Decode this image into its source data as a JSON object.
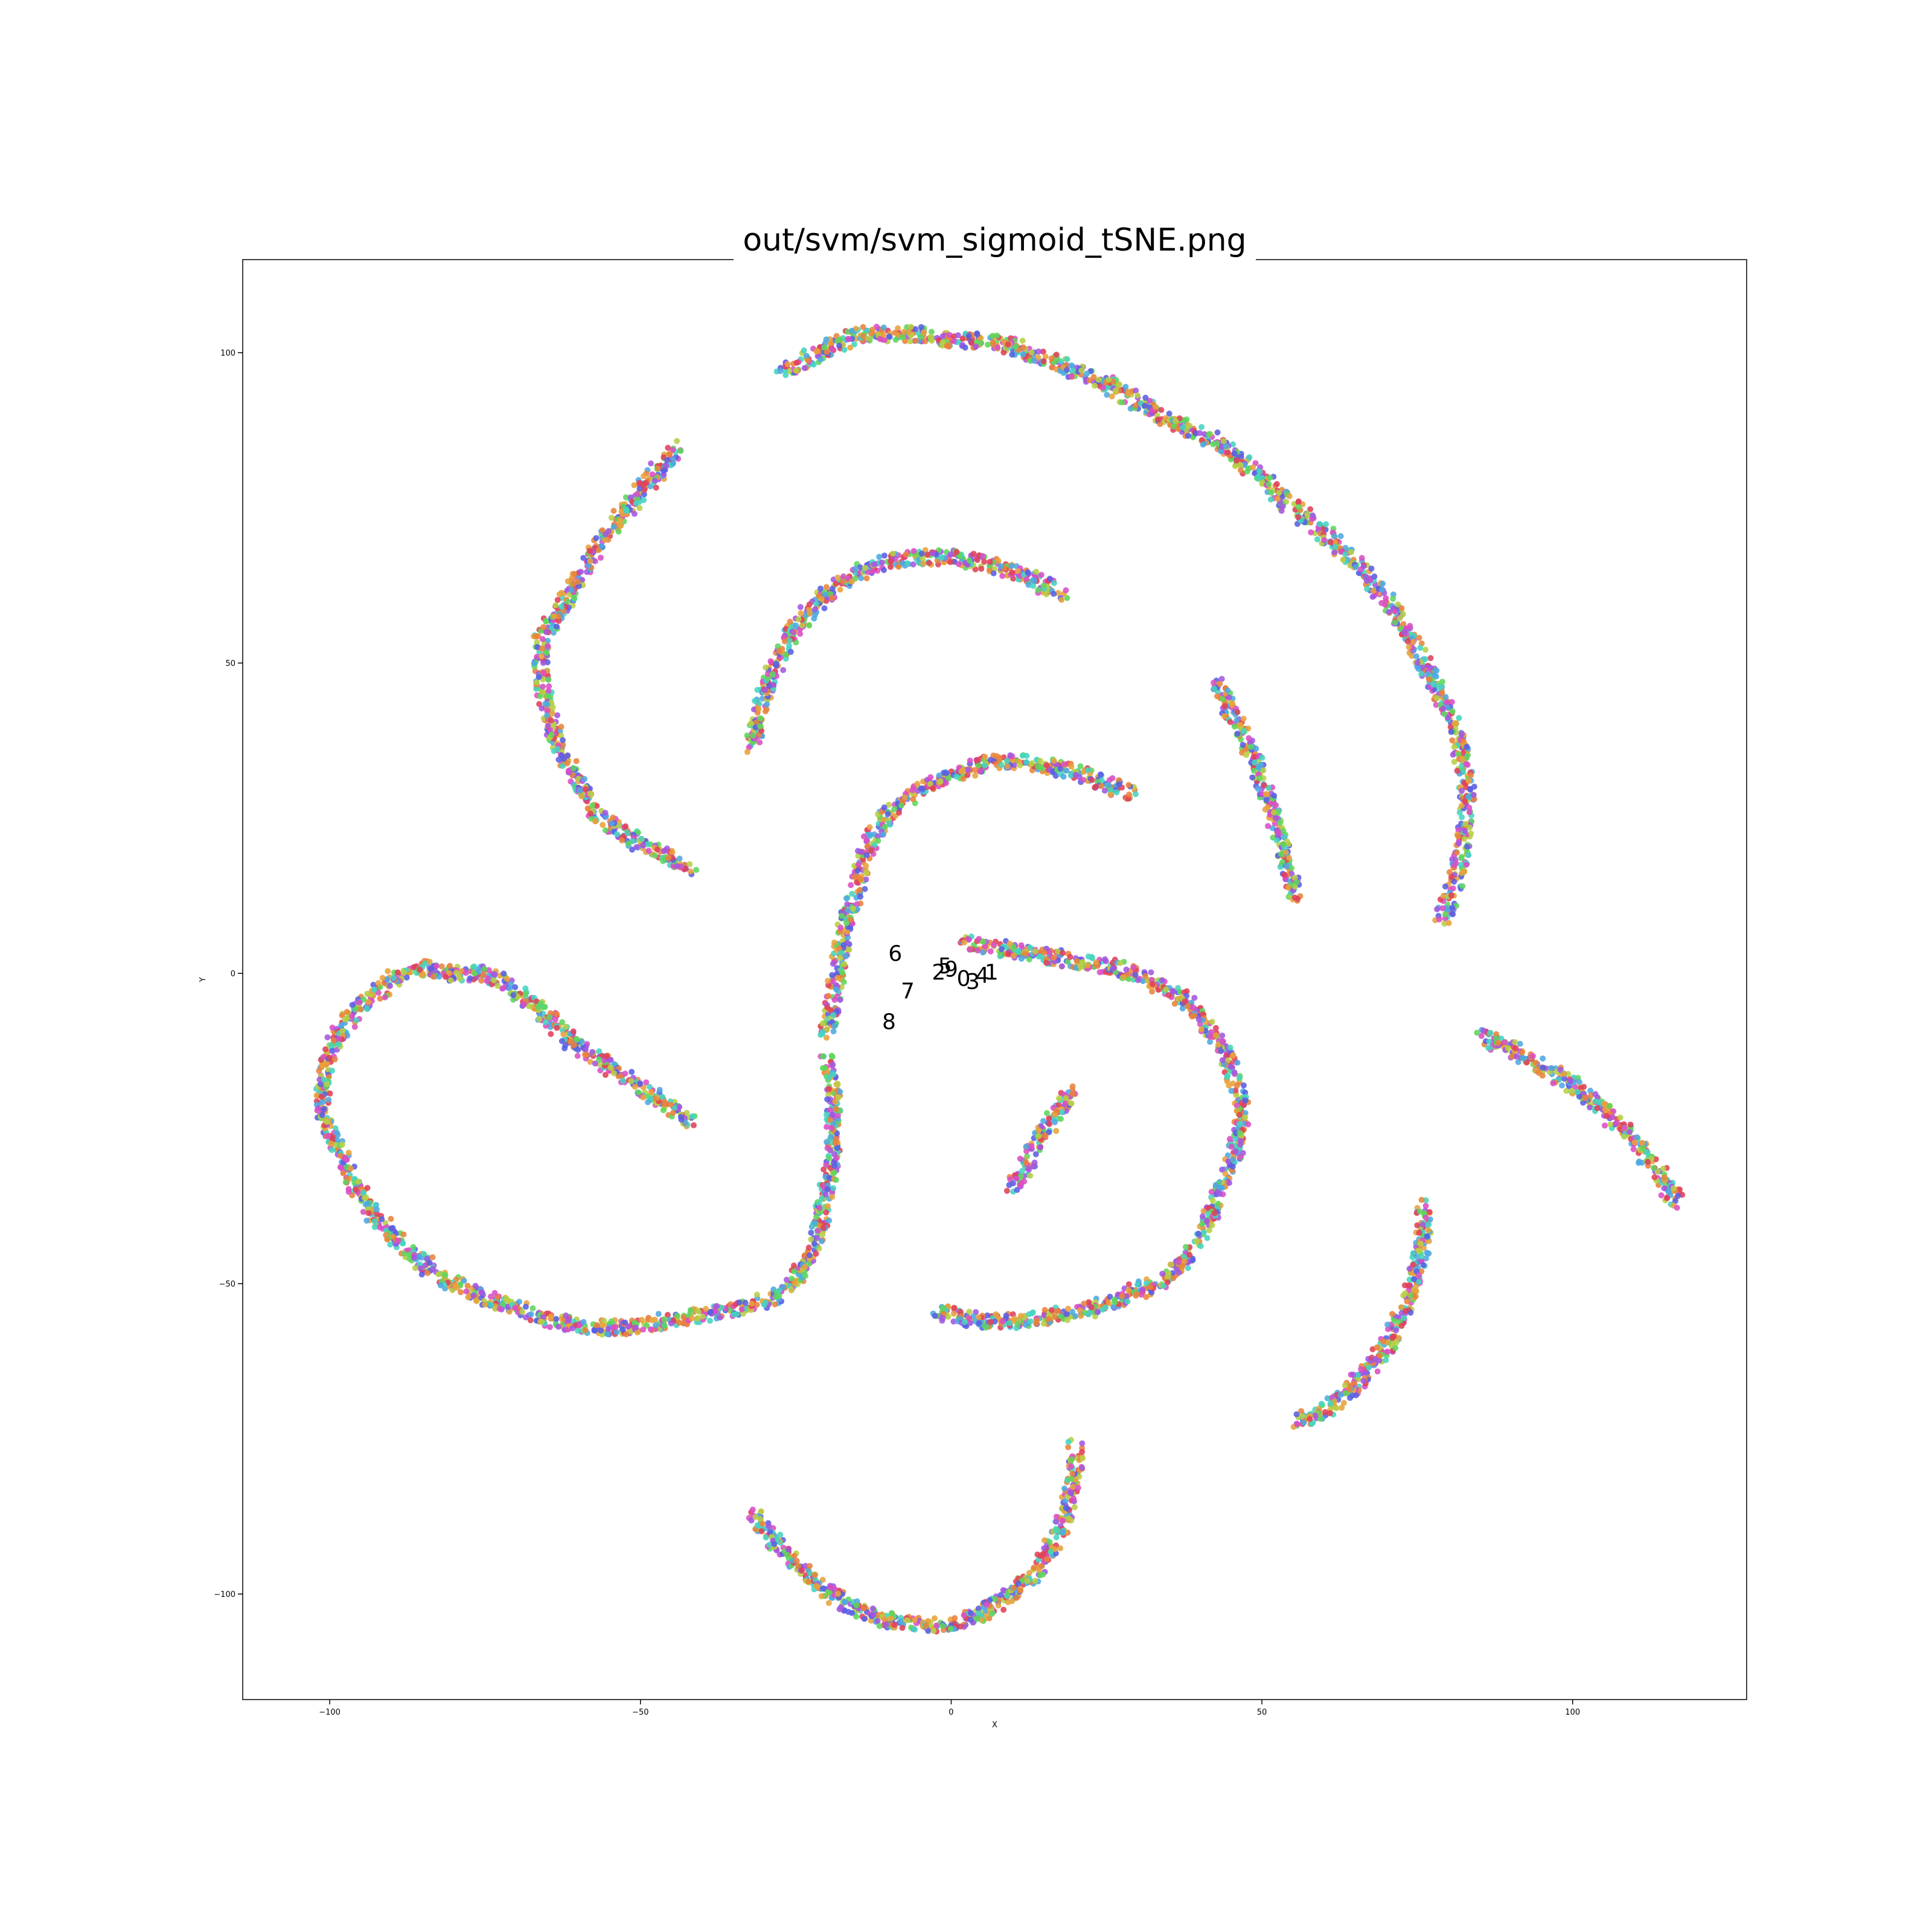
{
  "chart_data": {
    "type": "scatter",
    "title": "out/svm/svm_sigmoid_tSNE.png",
    "xlabel": "X",
    "ylabel": "Y",
    "xlim": [
      -114,
      128
    ],
    "ylim": [
      -117,
      115
    ],
    "xticks": [
      -100,
      -50,
      0,
      50,
      100
    ],
    "yticks": [
      -100,
      -50,
      0,
      50,
      100
    ],
    "xtick_labels": [
      "−100",
      "−50",
      "0",
      "50",
      "100"
    ],
    "ytick_labels": [
      "−100",
      "−50",
      "0",
      "50",
      "100"
    ],
    "grid": false,
    "legend": "none",
    "colors": [
      "#e0415a",
      "#e8a23c",
      "#b7cf45",
      "#5fd65c",
      "#46d4c0",
      "#4fa9e0",
      "#5a5ee3",
      "#a356e0",
      "#d94fc4",
      "#e8833c"
    ],
    "cluster_labels": [
      {
        "text": "6",
        "x": -9,
        "y": 2
      },
      {
        "text": "7",
        "x": -7,
        "y": -4
      },
      {
        "text": "8",
        "x": -10,
        "y": -9
      },
      {
        "text": "5",
        "x": -1,
        "y": 0
      },
      {
        "text": "2",
        "x": -2,
        "y": -1
      },
      {
        "text": "9",
        "x": 0,
        "y": -0.5
      },
      {
        "text": "0",
        "x": 2,
        "y": -2
      },
      {
        "text": "3",
        "x": 3.5,
        "y": -2.5
      },
      {
        "text": "4",
        "x": 5,
        "y": -1.5
      },
      {
        "text": "1",
        "x": 6.5,
        "y": -1
      }
    ],
    "series": [
      {
        "points": [
          [
            -32,
            36
          ],
          [
            -31,
            42
          ],
          [
            -29,
            48
          ],
          [
            -27,
            52
          ],
          [
            -24,
            57
          ],
          [
            -20,
            61
          ],
          [
            -16,
            64
          ],
          [
            -12,
            66
          ],
          [
            -6,
            67
          ],
          [
            0,
            67
          ],
          [
            6,
            66
          ],
          [
            12,
            64
          ],
          [
            18,
            61
          ]
        ]
      },
      {
        "points": [
          [
            -44,
            85
          ],
          [
            -48,
            80
          ],
          [
            -53,
            74
          ],
          [
            -58,
            67
          ],
          [
            -62,
            60
          ],
          [
            -66,
            54
          ],
          [
            -66,
            48
          ],
          [
            -65,
            42
          ],
          [
            -63,
            36
          ],
          [
            -60,
            31
          ],
          [
            -57,
            26
          ],
          [
            -54,
            23
          ],
          [
            -50,
            21
          ],
          [
            -46,
            19
          ],
          [
            -42,
            17
          ]
        ]
      },
      {
        "points": [
          [
            -27,
            97
          ],
          [
            -23,
            99
          ],
          [
            -19,
            101
          ],
          [
            -15,
            103
          ],
          [
            -10,
            103
          ],
          [
            -5,
            103
          ],
          [
            0,
            102
          ],
          [
            5,
            102
          ],
          [
            10,
            101
          ],
          [
            15,
            99
          ],
          [
            20,
            97
          ],
          [
            25,
            95
          ],
          [
            30,
            92
          ],
          [
            35,
            89
          ],
          [
            40,
            87
          ],
          [
            45,
            84
          ],
          [
            50,
            80
          ],
          [
            55,
            75
          ],
          [
            60,
            71
          ],
          [
            65,
            66
          ],
          [
            70,
            60
          ],
          [
            74,
            54
          ],
          [
            77,
            48
          ],
          [
            80,
            42
          ],
          [
            82,
            36
          ],
          [
            83,
            30
          ],
          [
            83,
            24
          ],
          [
            82,
            19
          ],
          [
            81,
            14
          ],
          [
            79,
            9
          ]
        ]
      },
      {
        "points": [
          [
            43,
            47
          ],
          [
            46,
            40
          ],
          [
            49,
            34
          ],
          [
            51,
            28
          ],
          [
            53,
            22
          ],
          [
            54,
            17
          ],
          [
            56,
            12
          ]
        ]
      },
      {
        "points": [
          [
            -20,
            -10
          ],
          [
            -19,
            -4
          ],
          [
            -18,
            2
          ],
          [
            -17,
            8
          ],
          [
            -15,
            14
          ],
          [
            -14,
            19
          ],
          [
            -12,
            23
          ],
          [
            -9,
            27
          ],
          [
            -5,
            30
          ],
          [
            0,
            32
          ],
          [
            6,
            34
          ],
          [
            12,
            34
          ],
          [
            18,
            33
          ],
          [
            24,
            31
          ],
          [
            29,
            29
          ]
        ]
      },
      {
        "points": [
          [
            -42,
            -24
          ],
          [
            -46,
            -21
          ],
          [
            -51,
            -18
          ],
          [
            -56,
            -14
          ],
          [
            -61,
            -11
          ],
          [
            -65,
            -7
          ],
          [
            -70,
            -3
          ],
          [
            -75,
            0
          ],
          [
            -80,
            0
          ],
          [
            -85,
            1
          ],
          [
            -90,
            -1
          ],
          [
            -95,
            -5
          ],
          [
            -99,
            -10
          ],
          [
            -101,
            -16
          ],
          [
            -101,
            -22
          ],
          [
            -99,
            -28
          ],
          [
            -96,
            -34
          ],
          [
            -92,
            -40
          ],
          [
            -87,
            -45
          ],
          [
            -82,
            -49
          ],
          [
            -76,
            -52
          ],
          [
            -70,
            -54
          ],
          [
            -64,
            -56
          ],
          [
            -58,
            -57
          ],
          [
            -52,
            -57
          ],
          [
            -46,
            -56
          ],
          [
            -40,
            -55
          ],
          [
            -34,
            -54
          ],
          [
            -28,
            -52
          ],
          [
            -24,
            -48
          ],
          [
            -22,
            -44
          ],
          [
            -21,
            -40
          ],
          [
            -20,
            -35
          ],
          [
            -19,
            -30
          ],
          [
            -19,
            -24
          ],
          [
            -19,
            -18
          ],
          [
            -20,
            -14
          ]
        ]
      },
      {
        "points": [
          [
            2,
            5
          ],
          [
            8,
            4
          ],
          [
            14,
            3
          ],
          [
            20,
            2
          ],
          [
            26,
            1
          ],
          [
            32,
            -1
          ],
          [
            37,
            -4
          ],
          [
            41,
            -8
          ],
          [
            44,
            -13
          ],
          [
            46,
            -18
          ],
          [
            47,
            -23
          ],
          [
            46,
            -28
          ],
          [
            44,
            -33
          ],
          [
            42,
            -38
          ],
          [
            40,
            -43
          ],
          [
            37,
            -47
          ],
          [
            33,
            -50
          ],
          [
            28,
            -52
          ],
          [
            23,
            -54
          ],
          [
            17,
            -55
          ],
          [
            11,
            -56
          ],
          [
            5,
            -56
          ],
          [
            0,
            -55
          ],
          [
            -3,
            -54
          ]
        ]
      },
      {
        "points": [
          [
            10,
            -35
          ],
          [
            12,
            -31
          ],
          [
            14,
            -27
          ],
          [
            16,
            -24
          ],
          [
            18,
            -21
          ],
          [
            20,
            -19
          ]
        ]
      },
      {
        "points": [
          [
            85,
            -10
          ],
          [
            90,
            -12
          ],
          [
            95,
            -15
          ],
          [
            100,
            -18
          ],
          [
            105,
            -22
          ],
          [
            109,
            -26
          ],
          [
            113,
            -31
          ],
          [
            117,
            -37
          ]
        ]
      },
      {
        "points": [
          [
            76,
            -37
          ],
          [
            76,
            -42
          ],
          [
            75,
            -48
          ],
          [
            73,
            -54
          ],
          [
            70,
            -60
          ],
          [
            67,
            -64
          ],
          [
            64,
            -67
          ],
          [
            61,
            -70
          ],
          [
            58,
            -71
          ],
          [
            55,
            -73
          ]
        ]
      },
      {
        "points": [
          [
            -32,
            -87
          ],
          [
            -29,
            -91
          ],
          [
            -25,
            -95
          ],
          [
            -21,
            -99
          ],
          [
            -16,
            -102
          ],
          [
            -11,
            -104
          ],
          [
            -5,
            -105
          ],
          [
            0,
            -105
          ],
          [
            5,
            -103
          ],
          [
            10,
            -100
          ],
          [
            14,
            -96
          ],
          [
            17,
            -91
          ],
          [
            19,
            -85
          ],
          [
            20,
            -79
          ],
          [
            20,
            -76
          ]
        ]
      }
    ]
  }
}
